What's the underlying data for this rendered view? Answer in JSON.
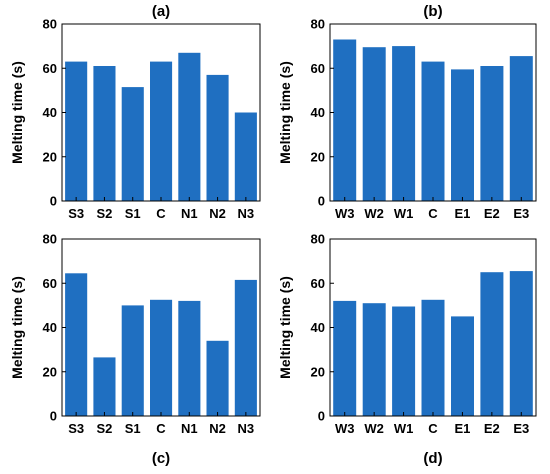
{
  "colors": {
    "bar": "#1f6fc1",
    "axis": "#000000"
  },
  "chart_data": [
    {
      "panel": "(a)",
      "type": "bar",
      "categories": [
        "S3",
        "S2",
        "S1",
        "C",
        "N1",
        "N2",
        "N3"
      ],
      "values": [
        63,
        61,
        51.5,
        63,
        67,
        57,
        40
      ],
      "ylabel": "Melting time (s)",
      "ylim": [
        0,
        80
      ],
      "yticks": [
        0,
        20,
        40,
        60,
        80
      ],
      "grid": false
    },
    {
      "panel": "(b)",
      "type": "bar",
      "categories": [
        "W3",
        "W2",
        "W1",
        "C",
        "E1",
        "E2",
        "E3"
      ],
      "values": [
        73,
        69.5,
        70,
        63,
        59.5,
        61,
        65.5
      ],
      "ylabel": "Melting time (s)",
      "ylim": [
        0,
        80
      ],
      "yticks": [
        0,
        20,
        40,
        60,
        80
      ],
      "grid": false
    },
    {
      "panel": "(c)",
      "type": "bar",
      "categories": [
        "S3",
        "S2",
        "S1",
        "C",
        "N1",
        "N2",
        "N3"
      ],
      "values": [
        64.5,
        26.5,
        50,
        52.5,
        52,
        34,
        61.5
      ],
      "ylabel": "Melting time (s)",
      "ylim": [
        0,
        80
      ],
      "yticks": [
        0,
        20,
        40,
        60,
        80
      ],
      "grid": false
    },
    {
      "panel": "(d)",
      "type": "bar",
      "categories": [
        "W3",
        "W2",
        "W1",
        "C",
        "E1",
        "E2",
        "E3"
      ],
      "values": [
        52,
        51,
        49.5,
        52.5,
        45,
        65,
        65.5
      ],
      "ylabel": "Melting time (s)",
      "ylim": [
        0,
        80
      ],
      "yticks": [
        0,
        20,
        40,
        60,
        80
      ],
      "grid": false
    }
  ]
}
